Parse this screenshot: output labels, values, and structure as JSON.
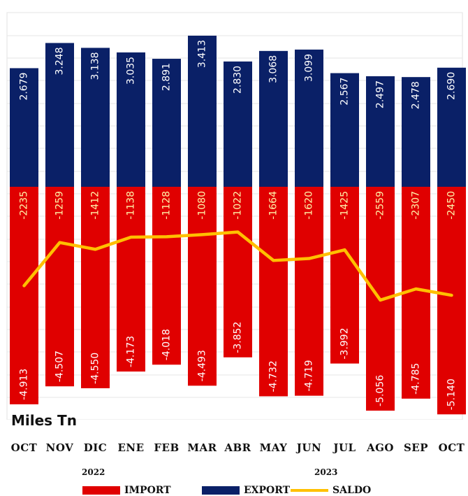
{
  "chart_data": {
    "type": "bar",
    "categories": [
      "OCT",
      "NOV",
      "DIC",
      "ENE",
      "FEB",
      "MAR",
      "ABR",
      "MAY",
      "JUN",
      "JUL",
      "AGO",
      "SEP",
      "OCT"
    ],
    "years": [
      "2022",
      "2023"
    ],
    "unit_label": "Miles Tn",
    "series": [
      {
        "name": "IMPORT",
        "values": [
          -4913,
          -4507,
          -4550,
          -4173,
          -4018,
          -4493,
          -3852,
          -4732,
          -4719,
          -3992,
          -5056,
          -4785,
          -5140
        ],
        "labels": [
          "-4.913",
          "-4.507",
          "-4.550",
          "-4.173",
          "-4.018",
          "-4.493",
          "-3.852",
          "-4.732",
          "-4.719",
          "-3.992",
          "-5.056",
          "-4.785",
          "-5.140"
        ],
        "color": "#E00000",
        "label_color": "#ffffff"
      },
      {
        "name": "EXPORT",
        "values": [
          2679,
          3248,
          3138,
          3035,
          2891,
          3413,
          2830,
          3068,
          3099,
          2567,
          2497,
          2478,
          2690
        ],
        "labels": [
          "2.679",
          "3.248",
          "3.138",
          "3.035",
          "2.891",
          "3.413",
          "2.830",
          "3.068",
          "3.099",
          "2.567",
          "2.497",
          "2.478",
          "2.690"
        ],
        "color": "#0A2067",
        "label_color": "#ffffff"
      },
      {
        "name": "SALDO",
        "type": "line",
        "values": [
          -2235,
          -1259,
          -1412,
          -1138,
          -1128,
          -1080,
          -1022,
          -1664,
          -1620,
          -1425,
          -2559,
          -2307,
          -2450
        ],
        "labels": [
          "-2235",
          "-1259",
          "-1412",
          "-1138",
          "-1128",
          "-1080",
          "-1022",
          "-1664",
          "-1620",
          "-1425",
          "-2559",
          "-2307",
          "-2450"
        ],
        "color": "#FFC000",
        "label_color": "#FFF2A8"
      }
    ],
    "ylim": [
      -5140,
      3413
    ],
    "grid": true,
    "legend_position": "bottom"
  }
}
